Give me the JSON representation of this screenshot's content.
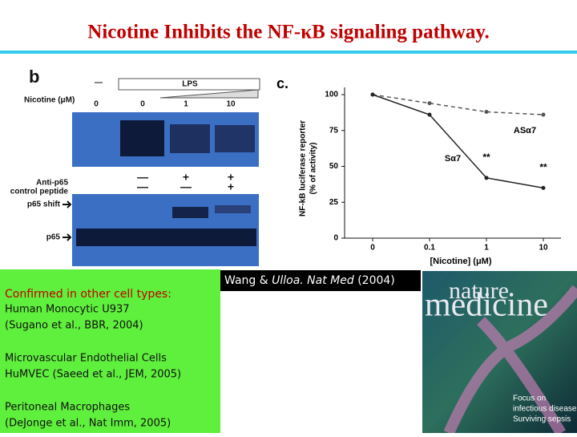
{
  "title": "Nicotine Inhibits the NF-κB signaling pathway.",
  "panel_b": {
    "label": "b",
    "lps": "LPS",
    "nicotine_label": "Nicotine (μM)",
    "blank_lane": "—",
    "doses": [
      "0",
      "0",
      "1",
      "10"
    ],
    "anti_label": "Anti-p65",
    "control_label": "control peptide",
    "anti_marks": [
      "—",
      "+",
      "+"
    ],
    "control_marks": [
      "—",
      "—",
      "+"
    ],
    "shift_label": "p65 shift",
    "p65_label": "p65"
  },
  "chart_data": {
    "type": "line",
    "panel_label": "c.",
    "categories": [
      "0",
      "0.1",
      "1",
      "10"
    ],
    "xlabel": "[Nicotine] (μM)",
    "ylabel": [
      "NF-kB luciferase reporter",
      "(% of activity)"
    ],
    "ylim": [
      0,
      105
    ],
    "yticks": [
      0,
      25,
      50,
      75,
      100
    ],
    "series": [
      {
        "name": "ASα7",
        "color": "#555555",
        "dashed": true,
        "values": [
          100,
          94,
          88,
          86
        ]
      },
      {
        "name": "Sα7",
        "color": "#222222",
        "dashed": false,
        "values": [
          100,
          86,
          42,
          35
        ]
      }
    ],
    "annotations": [
      "**",
      "**"
    ]
  },
  "citation": [
    "Wang & ",
    "Ulloa. Nat Med",
    " (2004)"
  ],
  "box": {
    "heading": "Confirmed in other cell types:",
    "items": [
      [
        "Human Monocytic U937",
        "(Sugano et al., BBR, 2004)"
      ],
      [
        "Microvascular Endothelial Cells",
        "HuMVEC (Saeed et al., JEM, 2005)"
      ],
      [
        "Peritoneal Macrophages",
        "(DeJonge et al., Nat Imm, 2005)"
      ]
    ]
  },
  "cover": {
    "brand": "nature",
    "journal": "medicine",
    "focus": [
      "Focus on",
      "infectious diseases"
    ],
    "story": "Surviving sepsis"
  }
}
